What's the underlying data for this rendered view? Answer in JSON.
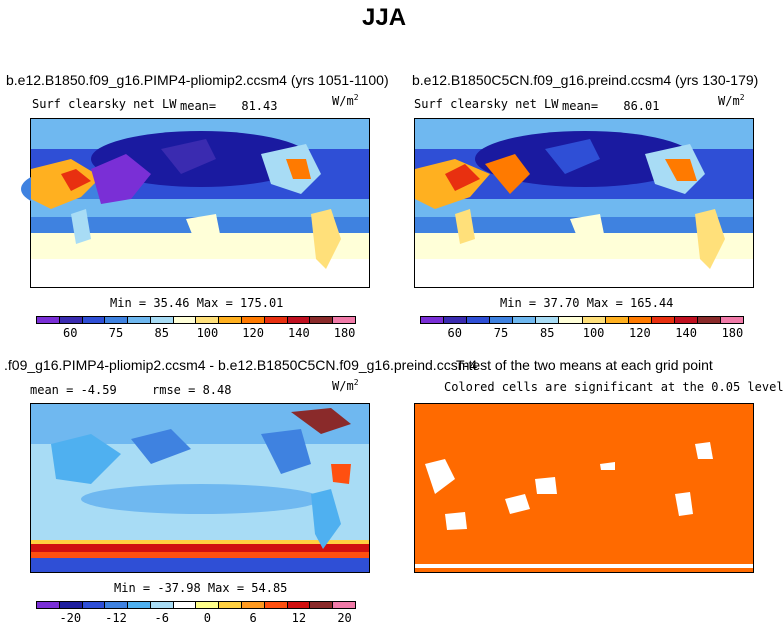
{
  "page": {
    "title": "JJA"
  },
  "panels": {
    "top_left": {
      "title": "b.e12.B1850.f09_g16.PIMP4-pliomip2.ccsm4 (yrs 1051-1100)",
      "variable": "Surf clearsky net LW",
      "mean_label": "mean=",
      "mean_value": "81.43",
      "units_base": "W/m",
      "units_exp": "2",
      "minmax": "Min =  35.46 Max = 175.01"
    },
    "top_right": {
      "title": "b.e12.B1850C5CN.f09_g16.preind.ccsm4 (yrs 130-179)",
      "variable": "Surf clearsky net LW",
      "mean_label": "mean=",
      "mean_value": "86.01",
      "units_base": "W/m",
      "units_exp": "2",
      "minmax": "Min =  37.70 Max = 165.44"
    },
    "bottom_left": {
      "title": ".f09_g16.PIMP4-pliomip2.ccsm4 - b.e12.B1850C5CN.f09_g16.preind.ccsm4",
      "mean_text": "mean =  -4.59",
      "rmse_text": "rmse =   8.48",
      "units_base": "W/m",
      "units_exp": "2",
      "minmax": "Min = -37.98 Max =  54.85"
    },
    "bottom_right": {
      "title": "T-test of the two means at each grid point",
      "subtitle": "Colored cells are significant at the 0.05 level"
    }
  },
  "colorbars": {
    "absolute": {
      "colors": [
        "#7a2fd6",
        "#3a2bb0",
        "#2f4fd6",
        "#3f82e0",
        "#6fb8f0",
        "#a8dcf5",
        "#ffffd8",
        "#ffe07a",
        "#ffb020",
        "#ff7a00",
        "#e83010",
        "#c01020",
        "#8a2a2a",
        "#f07aa8"
      ],
      "labels": [
        "60",
        "75",
        "85",
        "100",
        "120",
        "140",
        "180"
      ]
    },
    "difference": {
      "colors": [
        "#7a2fd6",
        "#1f1f9e",
        "#2f4fd6",
        "#3f82e0",
        "#4fb0f0",
        "#a8dcf5",
        "#ffffff",
        "#ffff8a",
        "#ffd040",
        "#ff9a20",
        "#ff5010",
        "#d01010",
        "#8a2a2a",
        "#f07aa8"
      ],
      "labels": [
        "-20",
        "-12",
        "-6",
        "0",
        "6",
        "12",
        "20"
      ]
    }
  },
  "colors": {
    "ocean_deep": "#1a1aa0",
    "ttest_fill": "#ff6a00"
  }
}
